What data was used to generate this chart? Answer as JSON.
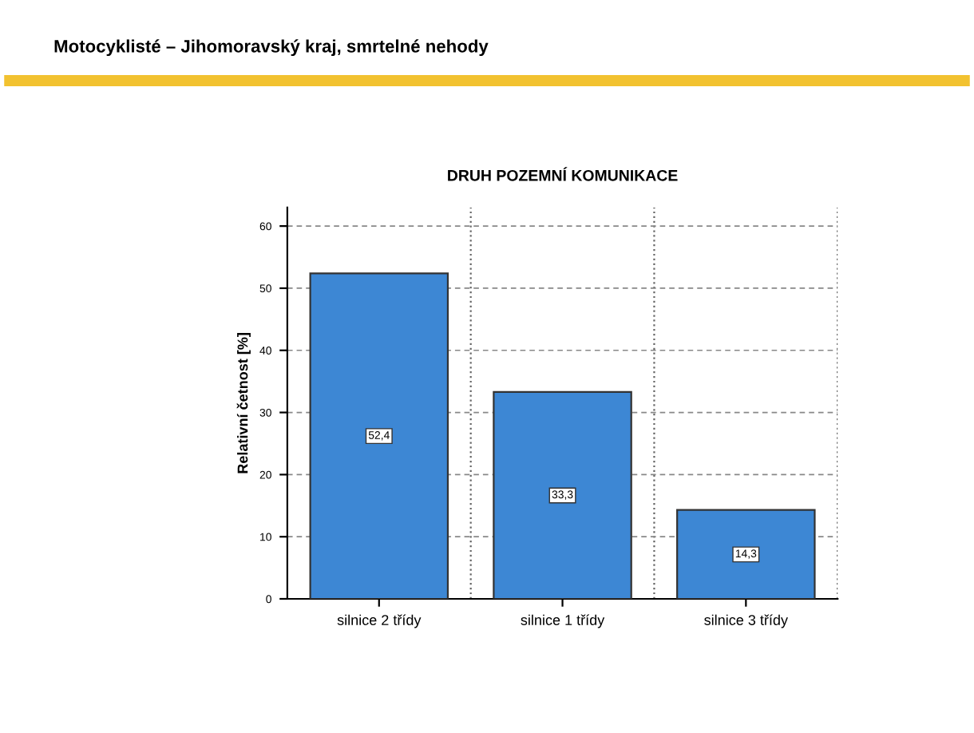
{
  "chart_data": {
    "type": "bar",
    "title": "DRUH POZEMNÍ KOMUNIKACE",
    "subtitle": "Motocyklisté – Jihomoravský kraj, smrtelné nehody",
    "ylabel": "Relativní četnost [%]",
    "categories": [
      "silnice 2 třídy",
      "silnice 1 třídy",
      "silnice 3 třídy"
    ],
    "values": [
      52.4,
      33.3,
      14.3
    ],
    "color": "#3d87d4",
    "ylim": [
      0,
      63
    ],
    "yticks": [
      0,
      10,
      20,
      30,
      40,
      50,
      60
    ],
    "grid": true,
    "value_labels": [
      "52,4",
      "33,3",
      "14,3"
    ]
  }
}
